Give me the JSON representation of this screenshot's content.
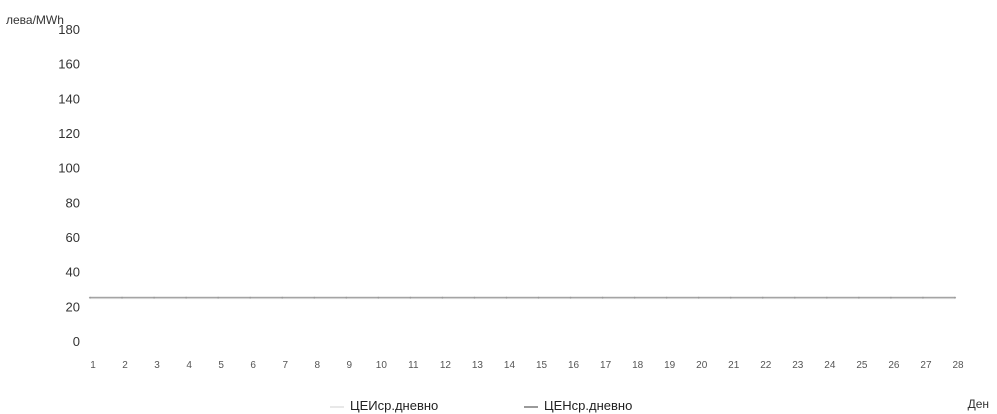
{
  "chart_data": {
    "type": "line",
    "title": "",
    "ylabel": "лева/MWh",
    "xlabel": "Ден",
    "ylim": [
      0,
      180
    ],
    "y_ticks": [
      "0",
      "20",
      "40",
      "60",
      "80",
      "100",
      "120",
      "140",
      "160",
      "180"
    ],
    "categories": [
      "1",
      "2",
      "3",
      "4",
      "5",
      "6",
      "7",
      "8",
      "9",
      "10",
      "11",
      "12",
      "13",
      "14",
      "15",
      "16",
      "17",
      "18",
      "19",
      "20",
      "21",
      "22",
      "23",
      "24",
      "25",
      "26",
      "27",
      "28"
    ],
    "series": [
      {
        "name": "ЦЕИср.дневно",
        "color": "#e8e8e8",
        "values": [
          25,
          25,
          25,
          25,
          25,
          25,
          25,
          25,
          25,
          25,
          25,
          25,
          25,
          25,
          25,
          25,
          25,
          25,
          25,
          25,
          25,
          25,
          25,
          25,
          25,
          25,
          25,
          25
        ]
      },
      {
        "name": "ЦЕНср.дневно",
        "color": "#9a9a9a",
        "values": [
          25,
          25,
          25,
          25,
          25,
          25,
          25,
          25,
          25,
          25,
          25,
          25,
          25,
          25,
          25,
          25,
          25,
          25,
          25,
          25,
          25,
          25,
          25,
          25,
          25,
          25,
          25,
          25
        ]
      }
    ],
    "grid": false,
    "legend_position": "bottom"
  }
}
